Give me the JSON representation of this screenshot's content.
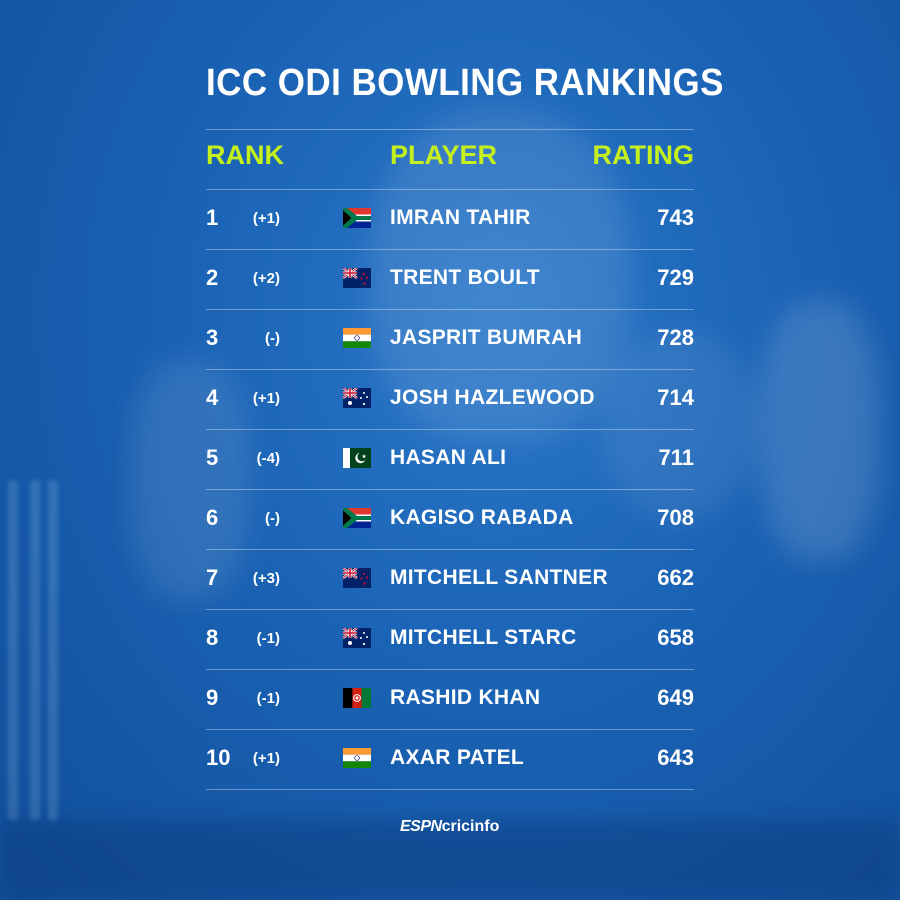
{
  "title": "ICC ODI BOWLING RANKINGS",
  "headers": {
    "rank": "RANK",
    "player": "PLAYER",
    "rating": "RATING"
  },
  "colors": {
    "accent": "#c6ef1e",
    "background": "#1a62b4",
    "text": "#ffffff"
  },
  "rows": [
    {
      "rank": "1",
      "change": "(+1)",
      "flag": "south-africa-flag",
      "player": "IMRAN TAHIR",
      "rating": "743"
    },
    {
      "rank": "2",
      "change": "(+2)",
      "flag": "new-zealand-flag",
      "player": "TRENT BOULT",
      "rating": "729"
    },
    {
      "rank": "3",
      "change": "(-)",
      "flag": "india-flag",
      "player": "JASPRIT BUMRAH",
      "rating": "728"
    },
    {
      "rank": "4",
      "change": "(+1)",
      "flag": "australia-flag",
      "player": "JOSH HAZLEWOOD",
      "rating": "714"
    },
    {
      "rank": "5",
      "change": "(-4)",
      "flag": "pakistan-flag",
      "player": "HASAN ALI",
      "rating": "711"
    },
    {
      "rank": "6",
      "change": "(-)",
      "flag": "south-africa-flag",
      "player": "KAGISO RABADA",
      "rating": "708"
    },
    {
      "rank": "7",
      "change": "(+3)",
      "flag": "new-zealand-flag",
      "player": "MITCHELL SANTNER",
      "rating": "662"
    },
    {
      "rank": "8",
      "change": "(-1)",
      "flag": "australia-flag",
      "player": "MITCHELL STARC",
      "rating": "658"
    },
    {
      "rank": "9",
      "change": "(-1)",
      "flag": "afghanistan-flag",
      "player": "RASHID KHAN",
      "rating": "649"
    },
    {
      "rank": "10",
      "change": "(+1)",
      "flag": "india-flag",
      "player": "AXAR PATEL",
      "rating": "643"
    }
  ],
  "logo": {
    "espn": "ESPN",
    "cricinfo": "cricinfo"
  }
}
